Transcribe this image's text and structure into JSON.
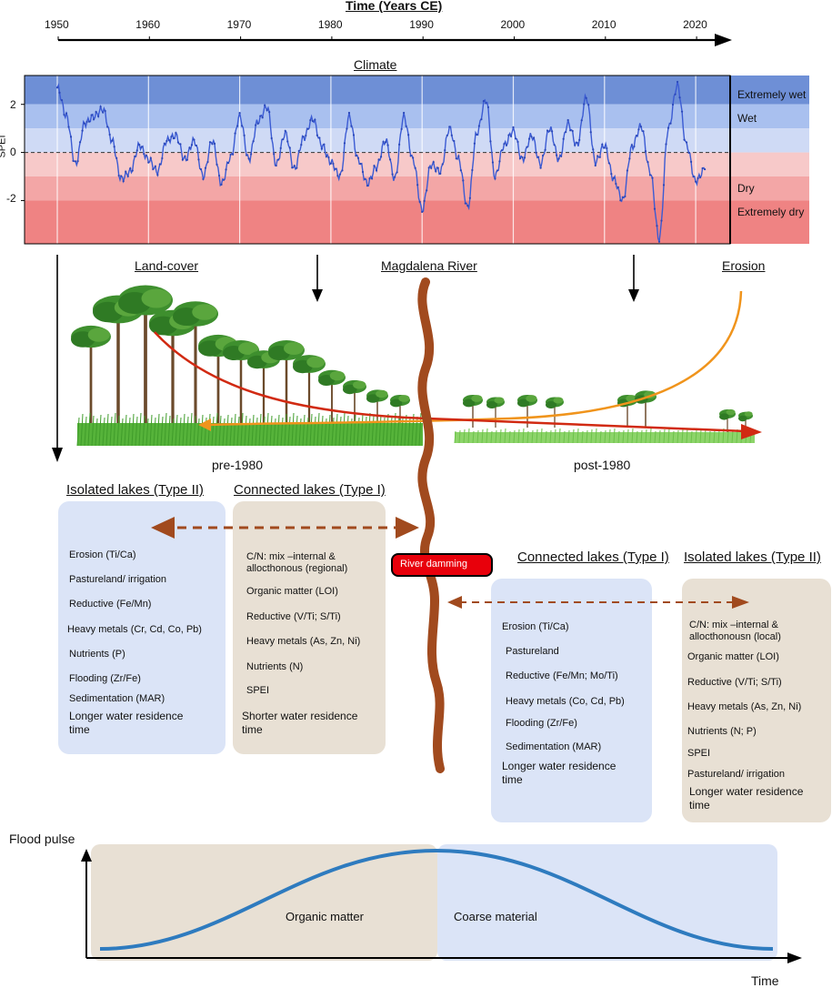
{
  "timeline": {
    "title": "Time (Years CE)",
    "years": [
      "1950",
      "1960",
      "1970",
      "1980",
      "1990",
      "2000",
      "2010",
      "2020"
    ]
  },
  "climate": {
    "title": "Climate",
    "ylabel": "SPEI",
    "yticks": [
      "2",
      "0",
      "-2"
    ],
    "bands": [
      "Extremely wet",
      "Wet",
      "Dry",
      "Extremely dry"
    ],
    "colors": {
      "ext_wet": "#6e8fd6",
      "wet": "#a9c0ef",
      "mild_wet": "#cfdaf5",
      "mild_dry": "#f7c9c9",
      "dry": "#f3a6a6",
      "ext_dry": "#ef8383",
      "line": "#3b5bd3"
    }
  },
  "chart_data": {
    "type": "line",
    "xlabel": "",
    "ylabel": "SPEI",
    "xlim": [
      1950,
      2021
    ],
    "ylim": [
      -3.8,
      3.2
    ],
    "x": [
      1950,
      1951,
      1952,
      1953,
      1954,
      1955,
      1956,
      1957,
      1958,
      1959,
      1960,
      1961,
      1962,
      1963,
      1964,
      1965,
      1966,
      1967,
      1968,
      1969,
      1970,
      1971,
      1972,
      1973,
      1974,
      1975,
      1976,
      1977,
      1978,
      1979,
      1980,
      1981,
      1982,
      1983,
      1984,
      1985,
      1986,
      1987,
      1988,
      1989,
      1990,
      1991,
      1992,
      1993,
      1994,
      1995,
      1996,
      1997,
      1998,
      1999,
      2000,
      2001,
      2002,
      2003,
      2004,
      2005,
      2006,
      2007,
      2008,
      2009,
      2010,
      2011,
      2012,
      2013,
      2014,
      2015,
      2016,
      2017,
      2018,
      2019,
      2020,
      2021
    ],
    "series": [
      {
        "values": [
          2.7,
          1.5,
          -0.5,
          1.2,
          1.5,
          1.8,
          0.5,
          -1.1,
          -0.8,
          0.3,
          -0.3,
          -0.8,
          0.5,
          0.7,
          -0.3,
          0.5,
          -1.0,
          0.5,
          -1.3,
          -0.2,
          1.5,
          -0.3,
          1.3,
          1.9,
          -0.5,
          0.8,
          -0.7,
          0.6,
          1.4,
          0.3,
          -0.4,
          -1.0,
          1.5,
          -0.3,
          -1.3,
          -0.6,
          0.5,
          -1.1,
          1.5,
          -0.3,
          -2.4,
          -0.5,
          -0.8,
          1.0,
          -0.3,
          -2.3,
          0.8,
          2.2,
          -1.0,
          0.3,
          0.9,
          -0.3,
          0.7,
          -0.5,
          1.0,
          -0.3,
          1.2,
          0.3,
          2.3,
          -0.4,
          0.3,
          -1.1,
          -2.0,
          0.2,
          1.1,
          -0.8,
          -3.6,
          1.0,
          2.8,
          0.3,
          -1.2,
          -0.7
        ]
      }
    ]
  },
  "middle": {
    "land_cover": "Land-cover",
    "river": "Magdalena River",
    "erosion": "Erosion",
    "pre": "pre-1980",
    "post": "post-1980",
    "damming": "River damming"
  },
  "left_boxes": {
    "isolated": {
      "header": "Isolated lakes (Type II)",
      "items": [
        "Erosion (Ti/Ca)",
        "Pastureland/ irrigation",
        "Reductive (Fe/Mn)",
        "Heavy metals (Cr, Cd, Co, Pb)",
        "Nutrients (P)",
        "Flooding (Zr/Fe)",
        "Sedimentation (MAR)",
        "Longer water residence time"
      ]
    },
    "connected": {
      "header": "Connected lakes (Type I)",
      "items": [
        "C/N: mix –internal & allocthonous (regional)",
        "Organic matter (LOI)",
        "Reductive (V/Ti; S/Ti)",
        "Heavy metals (As, Zn, Ni)",
        "Nutrients (N)",
        "SPEI",
        "Shorter water residence time"
      ]
    }
  },
  "right_boxes": {
    "connected": {
      "header": "Connected lakes (Type I)",
      "items": [
        "Erosion (Ti/Ca)",
        "Pastureland",
        "Reductive (Fe/Mn; Mo/Ti)",
        "Heavy metals (Co, Cd, Pb)",
        "Flooding (Zr/Fe)",
        "Sedimentation (MAR)",
        "Longer water residence time"
      ]
    },
    "isolated": {
      "header": "Isolated lakes (Type II)",
      "items": [
        "C/N: mix –internal & allocthonousn (local)",
        "Organic matter (LOI)",
        "Reductive (V/Ti; S/Ti)",
        "Heavy metals (As, Zn, Ni)",
        "Nutrients (N; P)",
        "SPEI",
        "Pastureland/ irrigation",
        "Longer water residence time"
      ]
    }
  },
  "flood": {
    "ylabel": "Flood pulse",
    "xlabel": "Time",
    "left": "Organic matter",
    "right": "Coarse material"
  },
  "colors": {
    "blue_box": "#dbe4f7",
    "tan_box": "#e8e0d4",
    "river": "#a14a1e",
    "dam": "#e8000b",
    "curve": "#2e7bbf"
  }
}
